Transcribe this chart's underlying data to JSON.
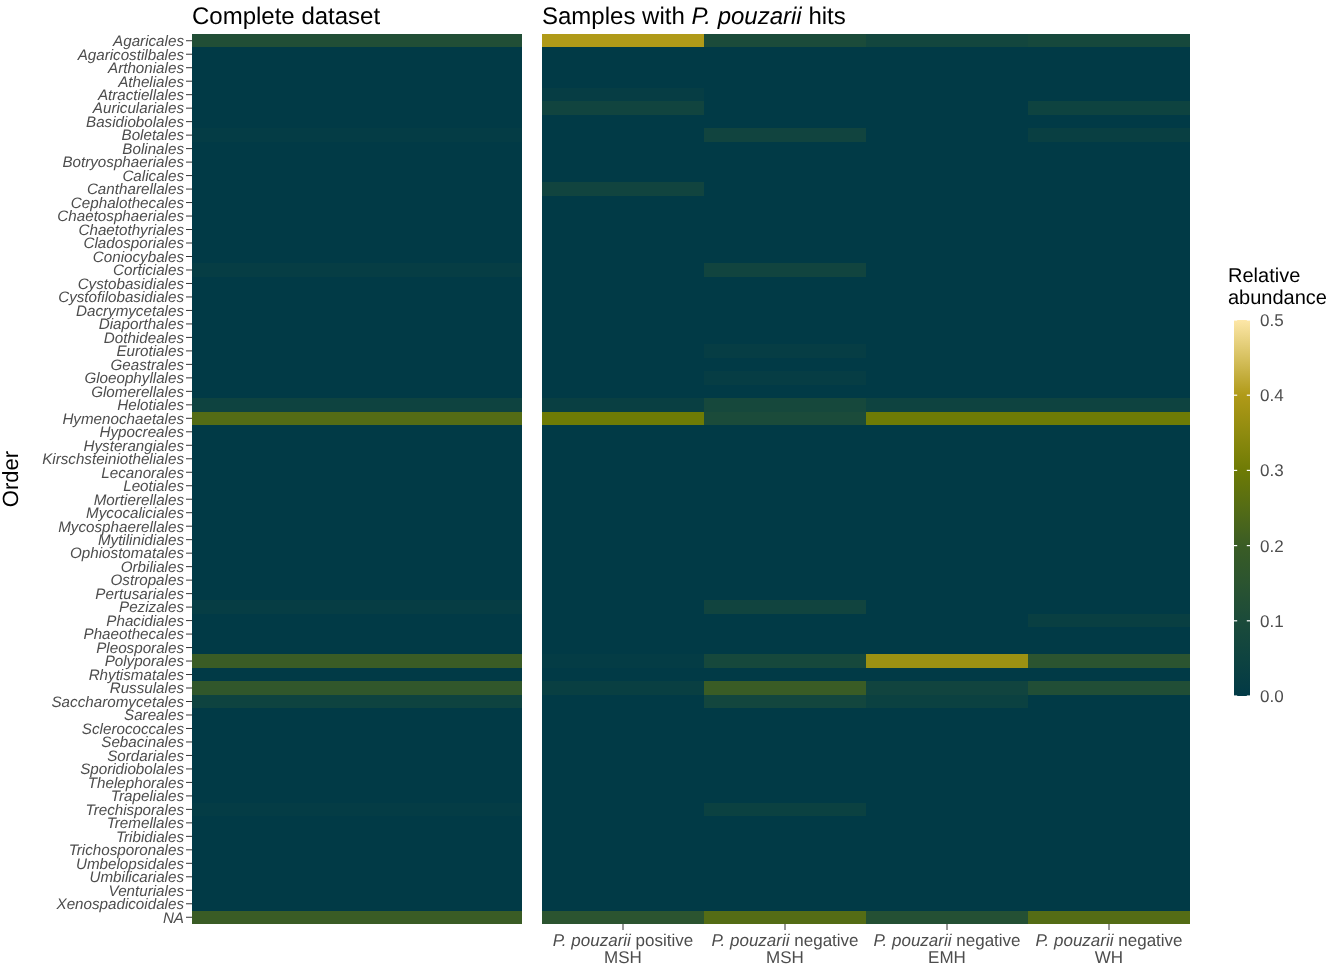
{
  "chart_data": [
    {
      "type": "heatmap",
      "title": "Complete dataset",
      "ylabel": "Order",
      "categories": [
        null
      ],
      "y_categories": [
        "Agaricales",
        "Agaricostilbales",
        "Arthoniales",
        "Atheliales",
        "Atractiellales",
        "Auriculariales",
        "Basidiobolales",
        "Boletales",
        "Bolinales",
        "Botryosphaeriales",
        "Calicales",
        "Cantharellales",
        "Cephalothecales",
        "Chaetosphaeriales",
        "Chaetothyriales",
        "Cladosporiales",
        "Coniocybales",
        "Corticiales",
        "Cystobasidiales",
        "Cystofilobasidiales",
        "Dacrymycetales",
        "Diaporthales",
        "Dothideales",
        "Eurotiales",
        "Geastrales",
        "Gloeophyllales",
        "Glomerellales",
        "Helotiales",
        "Hymenochaetales",
        "Hypocreales",
        "Hysterangiales",
        "Kirschsteiniotheliales",
        "Lecanorales",
        "Leotiales",
        "Mortierellales",
        "Mycocaliciales",
        "Mycosphaerellales",
        "Mytilinidiales",
        "Ophiostomatales",
        "Orbiliales",
        "Ostropales",
        "Pertusariales",
        "Pezizales",
        "Phacidiales",
        "Phaeothecales",
        "Pleosporales",
        "Polyporales",
        "Rhytismatales",
        "Russulales",
        "Saccharomycetales",
        "Sareales",
        "Sclerococcales",
        "Sebacinales",
        "Sordariales",
        "Sporidiobolales",
        "Thelephorales",
        "Trapeliales",
        "Trechisporales",
        "Tremellales",
        "Tribidiales",
        "Trichosporonales",
        "Umbelopsidales",
        "Umbilicariales",
        "Venturiales",
        "Xenospadicoidales",
        "NA"
      ],
      "cells": [
        [
          0.12
        ],
        [
          0
        ],
        [
          0
        ],
        [
          0
        ],
        [
          0
        ],
        [
          0
        ],
        [
          0
        ],
        [
          0.01
        ],
        [
          0
        ],
        [
          0
        ],
        [
          0
        ],
        [
          0
        ],
        [
          0
        ],
        [
          0
        ],
        [
          0
        ],
        [
          0
        ],
        [
          0
        ],
        [
          0.02
        ],
        [
          0
        ],
        [
          0
        ],
        [
          0
        ],
        [
          0
        ],
        [
          0
        ],
        [
          0
        ],
        [
          0
        ],
        [
          0
        ],
        [
          0
        ],
        [
          0.05
        ],
        [
          0.25
        ],
        [
          0
        ],
        [
          0
        ],
        [
          0
        ],
        [
          0
        ],
        [
          0
        ],
        [
          0
        ],
        [
          0
        ],
        [
          0
        ],
        [
          0
        ],
        [
          0
        ],
        [
          0
        ],
        [
          0
        ],
        [
          0
        ],
        [
          0.02
        ],
        [
          0
        ],
        [
          0
        ],
        [
          0
        ],
        [
          0.2
        ],
        [
          0
        ],
        [
          0.17
        ],
        [
          0.05
        ],
        [
          0
        ],
        [
          0
        ],
        [
          0
        ],
        [
          0
        ],
        [
          0
        ],
        [
          0
        ],
        [
          0
        ],
        [
          0.01
        ],
        [
          0
        ],
        [
          0
        ],
        [
          0
        ],
        [
          0
        ],
        [
          0
        ],
        [
          0
        ],
        [
          0
        ],
        [
          0.2
        ]
      ],
      "clim": [
        0,
        0.5
      ],
      "cticks": [
        {
          "value": 0,
          "label": "0.0"
        },
        0.2,
        0.4
      ],
      "tick_labels": "y"
    },
    {
      "type": "heatmap",
      "title": "Samples with P. pouzarii hits",
      "categories": [
        "P. pouzarii positive\nMSH",
        "P. pouzarii negative\nMSH",
        "P. pouzarii negative\nEMH",
        "P. pouzarii negative\nWH"
      ],
      "y_categories": [
        "Agaricales",
        "Agaricostilbales",
        "Arthoniales",
        "Atheliales",
        "Atractiellales",
        "Auriculariales",
        "Basidiobolales",
        "Boletales",
        "Bolinales",
        "Botryosphaeriales",
        "Calicales",
        "Cantharellales",
        "Cephalothecales",
        "Chaetosphaeriales",
        "Chaetothyriales",
        "Cladosporiales",
        "Coniocybales",
        "Corticiales",
        "Cystobasidiales",
        "Cystofilobasidiales",
        "Dacrymycetales",
        "Diaporthales",
        "Dothideales",
        "Eurotiales",
        "Geastrales",
        "Gloeophyllales",
        "Glomerellales",
        "Helotiales",
        "Hymenochaetales",
        "Hypocreales",
        "Hysterangiales",
        "Kirschsteiniotheliales",
        "Lecanorales",
        "Leotiales",
        "Mortierellales",
        "Mycocaliciales",
        "Mycosphaerellales",
        "Mytilinidiales",
        "Ophiostomatales",
        "Orbiliales",
        "Ostropales",
        "Pertusariales",
        "Pezizales",
        "Phacidiales",
        "Phaeothecales",
        "Pleosporales",
        "Polyporales",
        "Rhytismatales",
        "Russulales",
        "Saccharomycetales",
        "Sareales",
        "Sclerococcales",
        "Sebacinales",
        "Sordariales",
        "Sporidiobolales",
        "Thelephorales",
        "Trapeliales",
        "Trechisporales",
        "Tremellales",
        "Tribidiales",
        "Trichosporonales",
        "Umbelopsidales",
        "Umbilicariales",
        "Venturiales",
        "Xenospadicoidales",
        "NA"
      ],
      "cells": [
        [
          0.4,
          0.1,
          0.07,
          0.08
        ],
        [
          0,
          0,
          0,
          0
        ],
        [
          0,
          0,
          0,
          0
        ],
        [
          0,
          0,
          0,
          0
        ],
        [
          0.02,
          0,
          0,
          0
        ],
        [
          0.06,
          0,
          0,
          0.05
        ],
        [
          0,
          0,
          0,
          0
        ],
        [
          0,
          0.06,
          0,
          0.03
        ],
        [
          0,
          0,
          0,
          0
        ],
        [
          0,
          0,
          0,
          0
        ],
        [
          0,
          0,
          0,
          0
        ],
        [
          0.06,
          0,
          0,
          0
        ],
        [
          0,
          0,
          0,
          0
        ],
        [
          0,
          0,
          0,
          0
        ],
        [
          0,
          0,
          0,
          0
        ],
        [
          0,
          0,
          0,
          0
        ],
        [
          0,
          0,
          0,
          0
        ],
        [
          0,
          0.06,
          0,
          0
        ],
        [
          0,
          0,
          0,
          0
        ],
        [
          0,
          0,
          0,
          0
        ],
        [
          0,
          0,
          0,
          0
        ],
        [
          0,
          0,
          0,
          0
        ],
        [
          0,
          0,
          0,
          0
        ],
        [
          0,
          0.02,
          0,
          0
        ],
        [
          0,
          0,
          0,
          0
        ],
        [
          0,
          0.02,
          0,
          0
        ],
        [
          0,
          0,
          0,
          0
        ],
        [
          0.03,
          0.08,
          0.05,
          0.05
        ],
        [
          0.3,
          0.1,
          0.3,
          0.3
        ],
        [
          0,
          0,
          0,
          0
        ],
        [
          0,
          0,
          0,
          0
        ],
        [
          0,
          0,
          0,
          0
        ],
        [
          0,
          0,
          0,
          0
        ],
        [
          0,
          0,
          0,
          0
        ],
        [
          0,
          0,
          0,
          0
        ],
        [
          0,
          0,
          0,
          0
        ],
        [
          0,
          0,
          0,
          0
        ],
        [
          0,
          0,
          0,
          0
        ],
        [
          0,
          0,
          0,
          0
        ],
        [
          0,
          0,
          0,
          0
        ],
        [
          0,
          0,
          0,
          0
        ],
        [
          0,
          0,
          0,
          0
        ],
        [
          0,
          0.06,
          0,
          0
        ],
        [
          0,
          0,
          0,
          0.03
        ],
        [
          0,
          0,
          0,
          0
        ],
        [
          0,
          0,
          0,
          0
        ],
        [
          0.01,
          0.08,
          0.37,
          0.15
        ],
        [
          0,
          0,
          0,
          0
        ],
        [
          0.03,
          0.2,
          0.06,
          0.12
        ],
        [
          0,
          0.07,
          0.04,
          0
        ],
        [
          0,
          0,
          0,
          0
        ],
        [
          0,
          0,
          0,
          0
        ],
        [
          0,
          0,
          0,
          0
        ],
        [
          0,
          0,
          0,
          0
        ],
        [
          0,
          0,
          0,
          0
        ],
        [
          0,
          0,
          0,
          0
        ],
        [
          0,
          0,
          0,
          0
        ],
        [
          0,
          0.04,
          0,
          0
        ],
        [
          0,
          0,
          0,
          0
        ],
        [
          0,
          0,
          0,
          0
        ],
        [
          0,
          0,
          0,
          0
        ],
        [
          0,
          0,
          0,
          0
        ],
        [
          0,
          0,
          0,
          0
        ],
        [
          0,
          0,
          0,
          0
        ],
        [
          0,
          0,
          0,
          0
        ],
        [
          0.15,
          0.25,
          0.13,
          0.25
        ]
      ],
      "clim": [
        0,
        0.5
      ],
      "cticks": [
        0.1,
        0.3,
        0.5
      ],
      "clabel": "Relative abundance",
      "tick_labels": "x"
    }
  ]
}
